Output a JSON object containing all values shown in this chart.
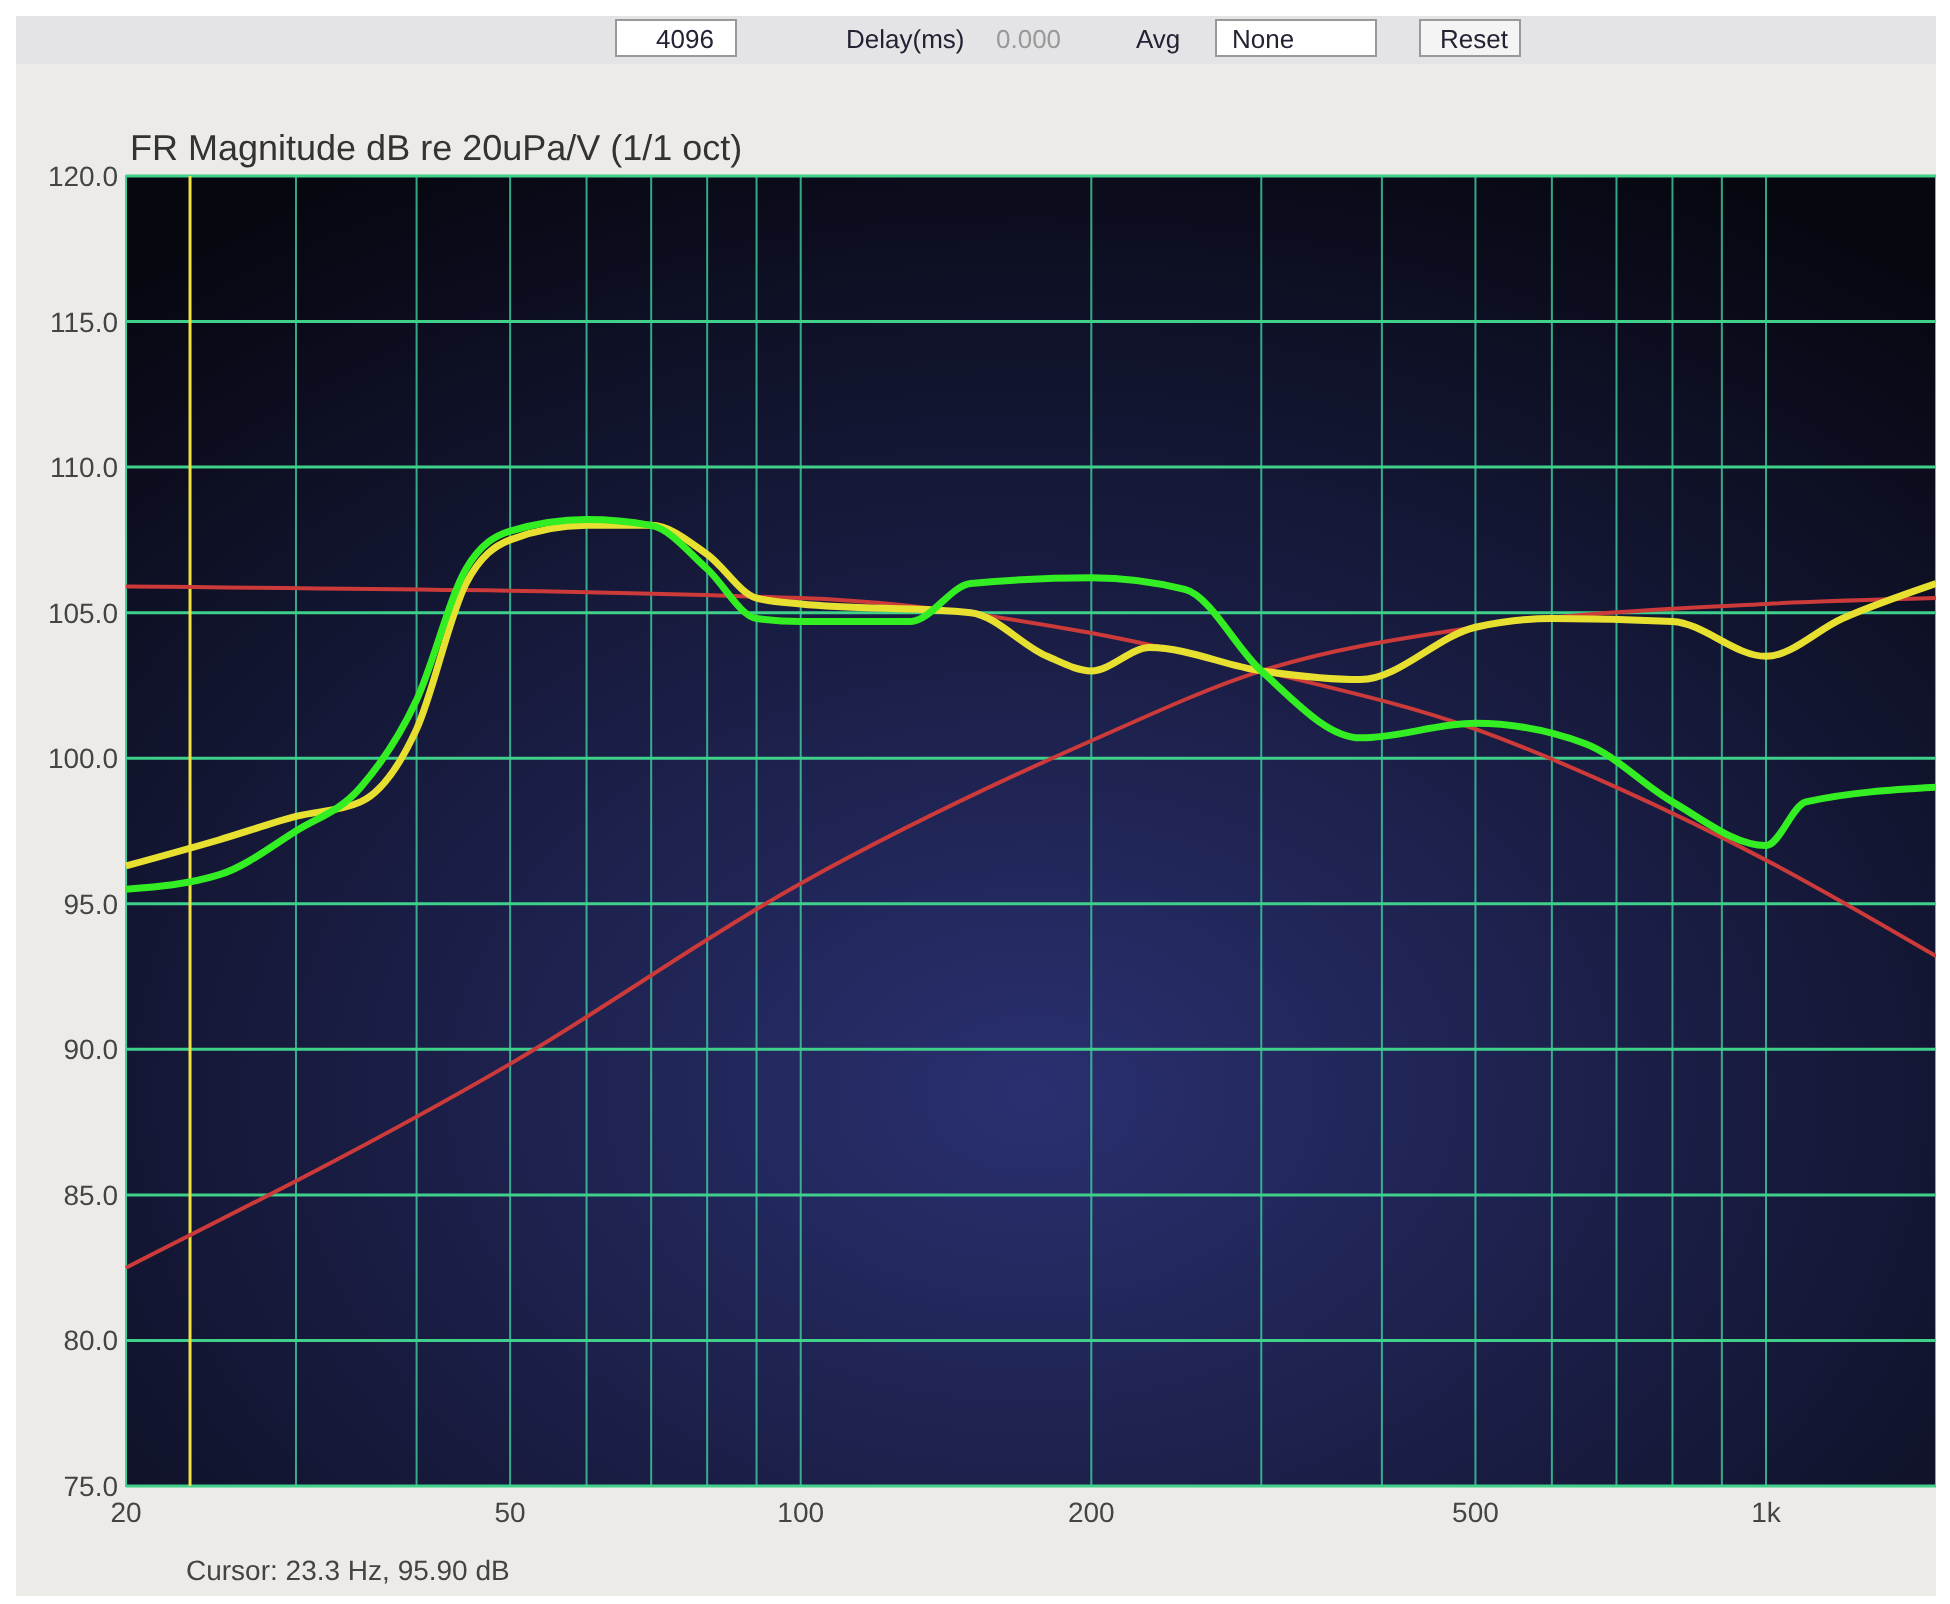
{
  "chart_data": {
    "type": "line",
    "title": "FR Magnitude dB re 20uPa/V (1/1 oct)",
    "log": "x",
    "grid": true,
    "line_style": "solid",
    "marker": "none",
    "xlim": [
      20,
      1500
    ],
    "ylim": [
      75,
      120
    ],
    "xticks": [
      20,
      {
        "value": 30,
        "label": null
      },
      {
        "value": 40,
        "label": null
      },
      50,
      {
        "value": 60,
        "label": null
      },
      {
        "value": 70,
        "label": null
      },
      {
        "value": 80,
        "label": null
      },
      {
        "value": 90,
        "label": null
      },
      100,
      200,
      {
        "value": 300,
        "label": null
      },
      {
        "value": 400,
        "label": null
      },
      500,
      {
        "value": 600,
        "label": null
      },
      {
        "value": 700,
        "label": null
      },
      {
        "value": 800,
        "label": null
      },
      {
        "value": 900,
        "label": null
      },
      {
        "value": 1000,
        "label": "1k"
      }
    ],
    "yticks": [
      {
        "value": 75,
        "label": "75.0"
      },
      {
        "value": 80,
        "label": "80.0"
      },
      {
        "value": 85,
        "label": "85.0"
      },
      {
        "value": 90,
        "label": "90.0"
      },
      {
        "value": 95,
        "label": "95.0"
      },
      {
        "value": 100,
        "label": "100.0"
      },
      {
        "value": 105,
        "label": "105.0"
      },
      {
        "value": 110,
        "label": "110.0"
      },
      {
        "value": 115,
        "label": "115.0"
      },
      {
        "value": 120,
        "label": "120.0"
      }
    ],
    "series": [
      {
        "color": "#cc3a3a",
        "x": [
          20,
          100,
          200,
          300,
          500,
          700,
          1000,
          1500
        ],
        "values": [
          105.9,
          105.5,
          104.3,
          103,
          101,
          99,
          96.5,
          93.2
        ]
      },
      {
        "color": "#cc3a3a",
        "x": [
          20,
          50,
          100,
          200,
          300,
          500,
          1000,
          1500
        ],
        "values": [
          82.5,
          89.5,
          95.7,
          100.6,
          103,
          104.5,
          105.3,
          105.5
        ]
      },
      {
        "color": "#e8e030",
        "x": [
          20,
          25,
          30,
          35,
          40,
          45,
          50,
          60,
          70,
          80,
          90,
          100,
          150,
          180,
          200,
          230,
          300,
          380,
          500,
          600,
          800,
          1000,
          1200,
          1500
        ],
        "values": [
          96.3,
          97.2,
          98,
          98.5,
          101,
          106,
          107.5,
          108,
          108,
          107,
          105.5,
          105.3,
          105,
          103.5,
          103,
          103.8,
          103,
          102.7,
          104.5,
          104.8,
          104.7,
          103.5,
          104.8,
          106
        ]
      },
      {
        "color": "#33ee22",
        "x": [
          20,
          25,
          30,
          35,
          40,
          45,
          50,
          60,
          70,
          80,
          90,
          100,
          130,
          150,
          200,
          250,
          300,
          380,
          500,
          650,
          800,
          1000,
          1100,
          1500
        ],
        "values": [
          95.5,
          96,
          97.5,
          99,
          102,
          106.5,
          107.8,
          108.2,
          108,
          106.5,
          104.8,
          104.7,
          104.7,
          106,
          106.2,
          105.8,
          103,
          100.7,
          101.2,
          100.5,
          98.5,
          97,
          98.5,
          99
        ]
      }
    ],
    "ref_lines": [
      {
        "axis": "x",
        "value": 23.3,
        "color": "#f0e040",
        "line_style": "solid"
      }
    ],
    "annotations": [
      "Cursor:  23.3 Hz, 95.90 dB",
      "4096",
      "Delay(ms)",
      "0.000",
      "Avg",
      "None",
      "Reset"
    ]
  }
}
